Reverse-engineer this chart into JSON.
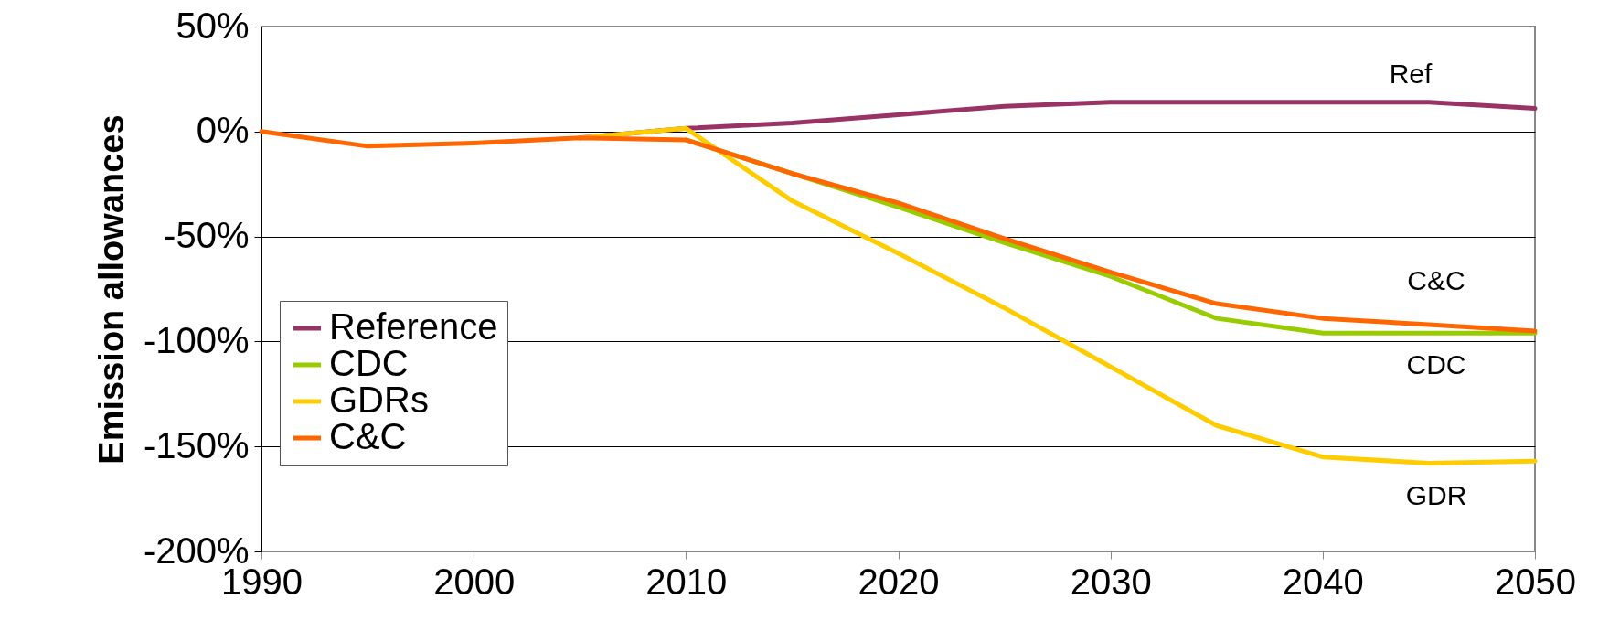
{
  "chart_data": {
    "type": "line",
    "ylabel": "Emission allowances",
    "x": [
      1990,
      1995,
      2000,
      2005,
      2010,
      2015,
      2020,
      2025,
      2030,
      2035,
      2040,
      2045,
      2050
    ],
    "series": [
      {
        "name": "Reference",
        "color": "#993366",
        "values": [
          null,
          null,
          null,
          -3,
          1.5,
          4,
          8,
          12,
          14,
          14,
          14,
          14,
          11
        ]
      },
      {
        "name": "CDC",
        "color": "#99cc00",
        "values": [
          null,
          null,
          null,
          null,
          -4,
          -20,
          -36,
          -53,
          -69,
          -89,
          -96,
          -96,
          -96
        ]
      },
      {
        "name": "GDRs",
        "color": "#ffcc00",
        "values": [
          null,
          null,
          null,
          -3,
          1.5,
          -33,
          -58,
          -84,
          -112,
          -140,
          -155,
          -158,
          -157
        ]
      },
      {
        "name": "C&C",
        "color": "#ff6600",
        "values": [
          0,
          -7,
          -5.5,
          -3,
          -4,
          -20,
          -34,
          -51,
          -67,
          -82,
          -89,
          -92,
          -95
        ]
      }
    ],
    "xlim": [
      1990,
      2050
    ],
    "xticks": [
      1990,
      2000,
      2010,
      2020,
      2030,
      2040,
      2050
    ],
    "ylim": [
      -200,
      50
    ],
    "yticks": [
      {
        "value": -200,
        "label": "-200%"
      },
      {
        "value": -150,
        "label": "-150%"
      },
      {
        "value": -100,
        "label": "-100%"
      },
      {
        "value": -50,
        "label": "-50%"
      },
      {
        "value": 0,
        "label": "0%"
      },
      {
        "value": 50,
        "label": "50%"
      }
    ],
    "grid": "y",
    "legend": "bottom left",
    "marker": "none",
    "line_style": "solid",
    "annotations": [
      "Ref",
      "C&C",
      "CDC",
      "GDR"
    ]
  }
}
